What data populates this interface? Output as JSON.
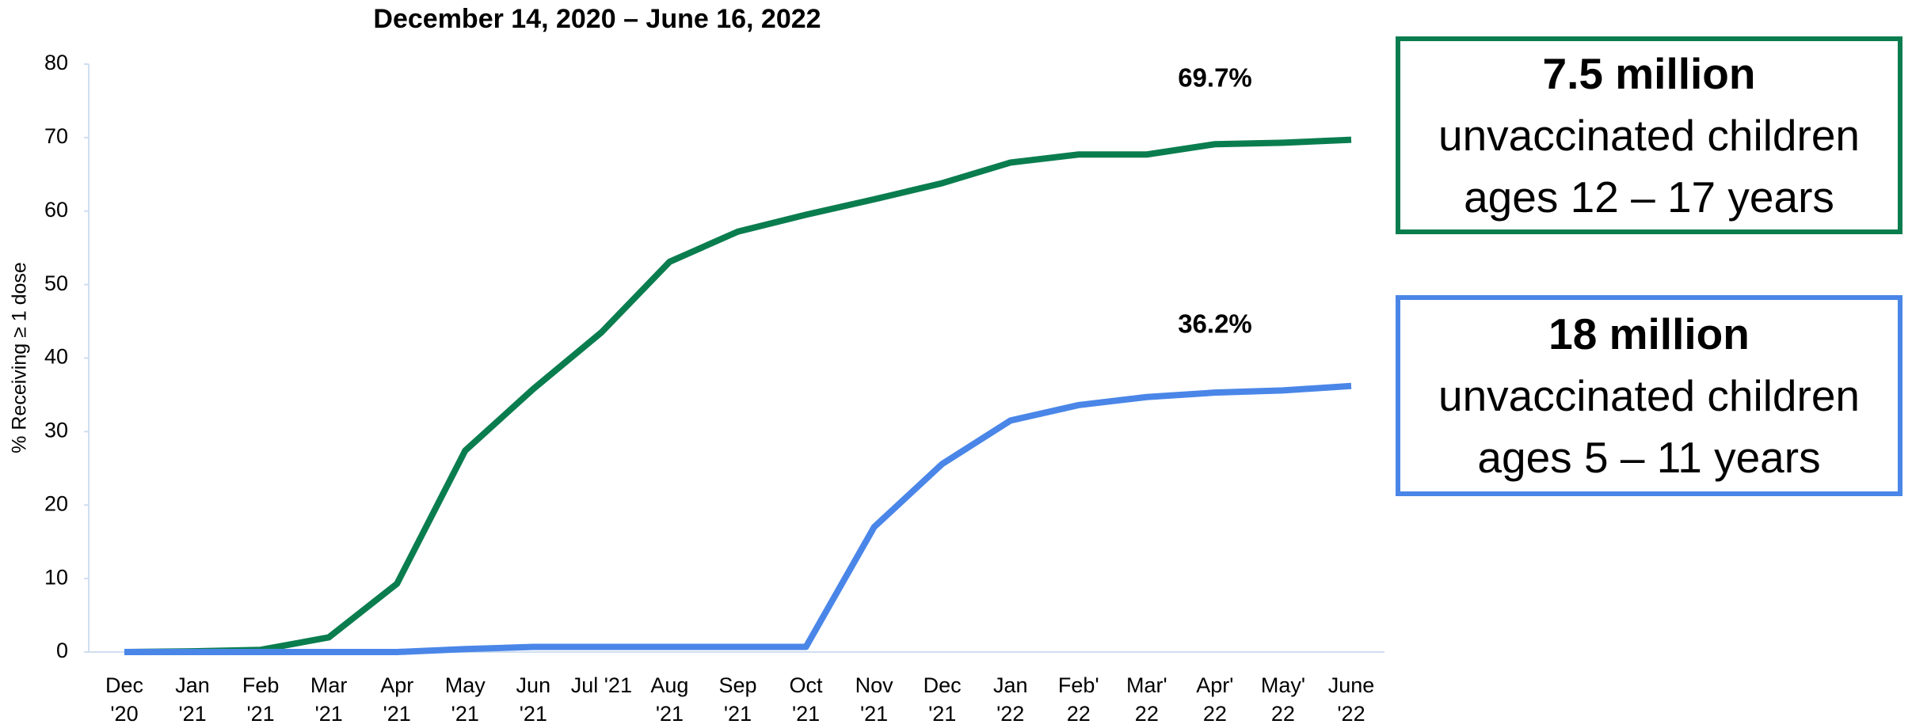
{
  "chart_data": {
    "type": "line",
    "title": "December 14, 2020 – June 16, 2022",
    "y_label": "% Receiving ≥ 1 dose",
    "categories": [
      "Dec\n'20",
      "Jan\n'21",
      "Feb\n'21",
      "Mar\n'21",
      "Apr\n'21",
      "May\n'21",
      "Jun\n'21",
      "Jul '21",
      "Aug\n'21",
      "Sep\n'21",
      "Oct\n'21",
      "Nov\n'21",
      "Dec\n'21",
      "Jan\n'22",
      "Feb'\n22",
      "Mar'\n22",
      "Apr'\n22",
      "May'\n22",
      "June\n'22"
    ],
    "series": [
      {
        "color": "#0a7d4f",
        "values": [
          0,
          0.1,
          0.3,
          2,
          9.3,
          27.4,
          35.8,
          43.5,
          53.1,
          57.2,
          59.5,
          61.6,
          63.8,
          66.6,
          67.7,
          67.7,
          69.1,
          69.3,
          69.7
        ],
        "value_labels": [
          null,
          null,
          null,
          null,
          null,
          null,
          null,
          null,
          null,
          null,
          null,
          null,
          null,
          null,
          null,
          null,
          null,
          null,
          "69.7%"
        ]
      },
      {
        "color": "#4a86e8",
        "values": [
          0,
          0,
          0,
          0,
          0,
          0.4,
          0.7,
          0.7,
          0.7,
          0.7,
          0.7,
          17,
          25.6,
          31.5,
          33.6,
          34.7,
          35.3,
          35.6,
          36.2
        ],
        "value_labels": [
          null,
          null,
          null,
          null,
          null,
          null,
          null,
          null,
          null,
          null,
          null,
          null,
          null,
          null,
          null,
          null,
          null,
          null,
          "36.2%"
        ]
      }
    ],
    "ylim": [
      0,
      80
    ],
    "yticks": [
      0,
      10,
      20,
      30,
      40,
      50,
      60,
      70,
      80
    ],
    "grid": false,
    "annotations": [
      {
        "color": "#0a7d4f",
        "lines": [
          "7.5 million",
          "unvaccinated children",
          "ages 12 – 17 years"
        ]
      },
      {
        "color": "#4a86e8",
        "lines": [
          "18 million",
          "unvaccinated children",
          "ages 5 – 11 years"
        ]
      }
    ]
  }
}
